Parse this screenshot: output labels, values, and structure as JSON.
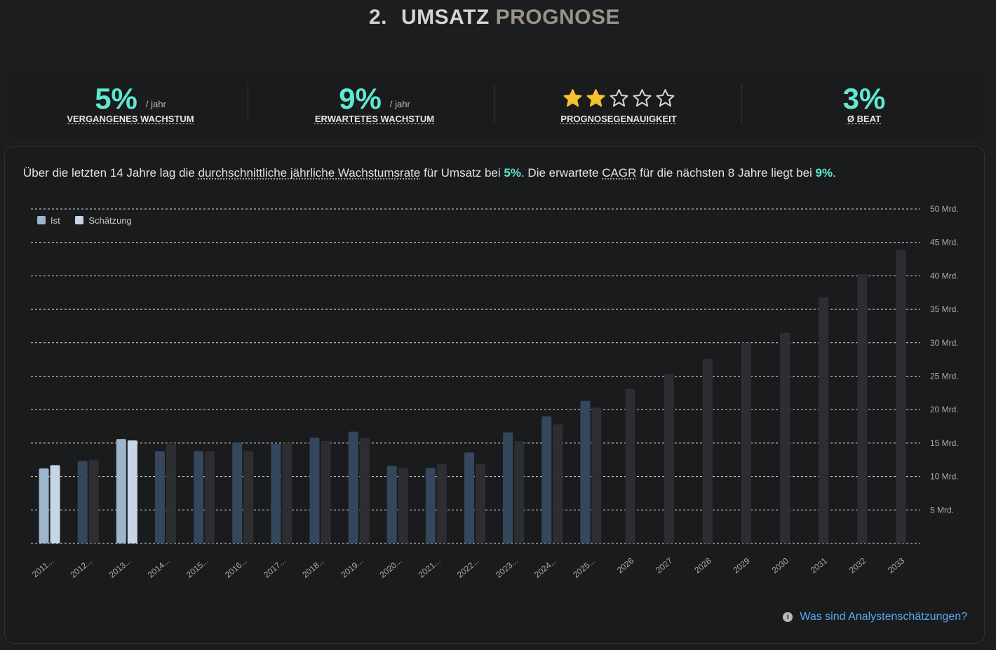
{
  "header": {
    "number": "2.",
    "title_main": "UMSATZ",
    "title_accent": "PROGNOSE"
  },
  "kpis": [
    {
      "value": "5%",
      "unit": "/ jahr",
      "label": "VERGANGENES WACHSTUM"
    },
    {
      "value": "9%",
      "unit": "/ jahr",
      "label": "ERWARTETES WACHSTUM"
    },
    {
      "rating": 2,
      "rating_max": 5,
      "label": "PROGNOSEGENAUIGKEIT"
    },
    {
      "value": "3%",
      "unit": "",
      "label": "Ø BEAT"
    }
  ],
  "description": {
    "p1": "Über die letzten 14 Jahre lag die ",
    "u1": "durchschnittliche jährliche Wachstumsrate",
    "p2": " für Umsatz bei ",
    "h1": "5%",
    "p3": ". Die erwartete ",
    "u2": "CAGR",
    "p4": " für die nächsten 8 Jahre liegt bei ",
    "h2": "9%",
    "p5": "."
  },
  "help_link": "Was sind Analystenschätzungen?",
  "colors": {
    "accent": "#5fe8d2",
    "actual": "#34475c",
    "estimate": "#2c2e31",
    "actual_highlight": "#9db6cc",
    "estimate_highlight": "#c6d6e4"
  },
  "chart_data": {
    "type": "bar",
    "legend": [
      {
        "name": "Ist",
        "color": "#9db6cc"
      },
      {
        "name": "Schätzung",
        "color": "#c6d6e4"
      }
    ],
    "legend_position": "top-left",
    "ylim": [
      0,
      50
    ],
    "y_ticks": [
      "5 Mrd.",
      "10 Mrd.",
      "15 Mrd.",
      "20 Mrd.",
      "25 Mrd.",
      "30 Mrd.",
      "35 Mrd.",
      "40 Mrd.",
      "45 Mrd.",
      "50 Mrd."
    ],
    "y_tick_values": [
      5,
      10,
      15,
      20,
      25,
      30,
      35,
      40,
      45,
      50
    ],
    "y_axis_side": "right",
    "grid": true,
    "highlighted_categories": [
      "2011...",
      "2013..."
    ],
    "categories": [
      "2011...",
      "2012...",
      "2013...",
      "2014...",
      "2015...",
      "2016...",
      "2017...",
      "2018...",
      "2019...",
      "2020...",
      "2021...",
      "2022...",
      "2023...",
      "2024...",
      "2025...",
      "2026",
      "2027",
      "2028",
      "2029",
      "2030",
      "2031",
      "2032",
      "2033"
    ],
    "series": [
      {
        "name": "Ist",
        "values": [
          11.2,
          12.3,
          15.6,
          13.8,
          13.8,
          15.1,
          14.9,
          15.8,
          16.7,
          11.6,
          11.3,
          13.6,
          16.6,
          19.0,
          21.3,
          null,
          null,
          null,
          null,
          null,
          null,
          null,
          null
        ]
      },
      {
        "name": "Schätzung",
        "values": [
          11.7,
          12.5,
          15.4,
          15.0,
          13.8,
          13.8,
          15.0,
          15.3,
          15.8,
          11.3,
          11.9,
          11.9,
          15.3,
          17.8,
          20.3,
          23.1,
          25.3,
          27.6,
          30.0,
          31.5,
          36.8,
          40.3,
          43.9
        ]
      }
    ]
  }
}
